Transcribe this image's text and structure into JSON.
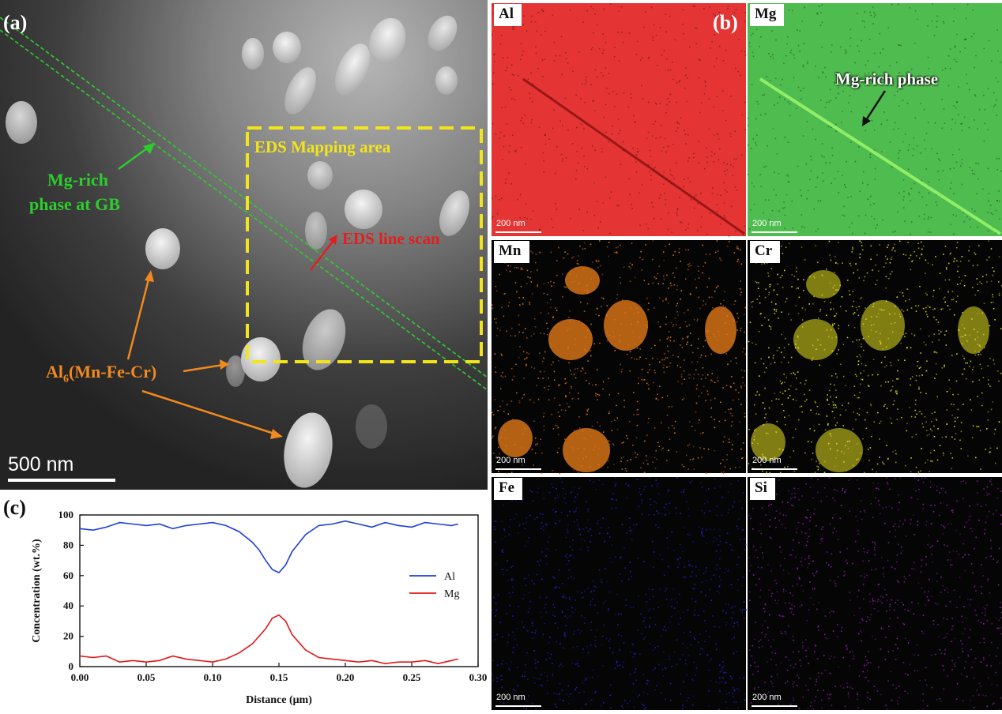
{
  "panel_a": {
    "label": "(a)",
    "mapping_area_label": "EDS Mapping area",
    "line_scan_label": "EDS line scan",
    "gb_label_line1": "Mg-rich",
    "gb_label_line2": "phase at GB",
    "particle_label_main": "Al",
    "particle_label_sub": "6",
    "particle_label_rest": "(Mn-Fe-Cr)",
    "scale_bar": "500 nm",
    "colors": {
      "gb": "#2ecc2e",
      "mapping": "#f2e51a",
      "line_scan": "#e02020",
      "particle": "#f08a20"
    }
  },
  "panel_b": {
    "label": "(b)",
    "maps": [
      {
        "element": "Al",
        "scale": "200 nm",
        "color": "#e01010"
      },
      {
        "element": "Mg",
        "scale": "200 nm",
        "color": "#30b030",
        "annotation": "Mg-rich phase"
      },
      {
        "element": "Mn",
        "scale": "200 nm",
        "color": "#e07818"
      },
      {
        "element": "Cr",
        "scale": "200 nm",
        "color": "#e6e020"
      },
      {
        "element": "Fe",
        "scale": "200 nm",
        "color": "#2222d8"
      },
      {
        "element": "Si",
        "scale": "200 nm",
        "color": "#9020b0"
      }
    ]
  },
  "panel_c": {
    "label": "(c)"
  },
  "chart_data": {
    "type": "line",
    "xlabel": "Distance (μm)",
    "ylabel": "Concentration (wt.%)",
    "xlim": [
      0,
      0.3
    ],
    "ylim": [
      0,
      100
    ],
    "xticks": [
      "0.00",
      "0.05",
      "0.10",
      "0.15",
      "0.20",
      "0.25",
      "0.30"
    ],
    "yticks": [
      "0",
      "20",
      "40",
      "60",
      "80",
      "100"
    ],
    "legend_position": "right",
    "series": [
      {
        "name": "Al",
        "color": "#1f3fd6",
        "x": [
          0.0,
          0.01,
          0.02,
          0.03,
          0.04,
          0.05,
          0.06,
          0.07,
          0.08,
          0.09,
          0.1,
          0.11,
          0.12,
          0.13,
          0.135,
          0.14,
          0.145,
          0.15,
          0.155,
          0.16,
          0.17,
          0.18,
          0.19,
          0.2,
          0.21,
          0.22,
          0.23,
          0.24,
          0.25,
          0.26,
          0.27,
          0.28,
          0.285
        ],
        "y": [
          91,
          90,
          92,
          95,
          94,
          93,
          94,
          91,
          93,
          94,
          95,
          93,
          89,
          82,
          77,
          70,
          64,
          62,
          67,
          76,
          87,
          93,
          94,
          96,
          94,
          92,
          95,
          93,
          92,
          95,
          94,
          93,
          94
        ]
      },
      {
        "name": "Mg",
        "color": "#e01818",
        "x": [
          0.0,
          0.01,
          0.02,
          0.03,
          0.04,
          0.05,
          0.06,
          0.07,
          0.08,
          0.09,
          0.1,
          0.11,
          0.12,
          0.13,
          0.135,
          0.14,
          0.145,
          0.15,
          0.155,
          0.16,
          0.17,
          0.18,
          0.19,
          0.2,
          0.21,
          0.22,
          0.23,
          0.24,
          0.25,
          0.26,
          0.27,
          0.28,
          0.285
        ],
        "y": [
          7,
          6,
          7,
          3,
          4,
          3,
          4,
          7,
          5,
          4,
          3,
          5,
          9,
          15,
          20,
          25,
          32,
          34,
          30,
          21,
          11,
          6,
          5,
          4,
          3,
          4,
          2,
          3,
          3,
          4,
          2,
          4,
          5
        ]
      }
    ]
  }
}
